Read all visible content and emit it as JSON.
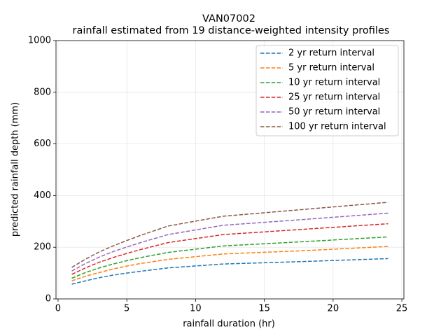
{
  "chart_data": {
    "type": "line",
    "title": "VAN07002",
    "subtitle": "rainfall estimated from 19 distance-weighted intensity profiles",
    "x_label": "rainfall duration (hr)",
    "y_label": "predicted rainfall depth (mm)",
    "x": [
      1,
      2,
      3,
      4,
      5,
      6,
      8,
      12,
      18,
      24
    ],
    "series": [
      {
        "name": "2 yr return interval",
        "color": "#1f77b4",
        "values": [
          57,
          70,
          82,
          92,
          100,
          107,
          120,
          135,
          145,
          156
        ]
      },
      {
        "name": "5 yr return interval",
        "color": "#ff7f0e",
        "values": [
          70,
          88,
          102,
          116,
          127,
          137,
          153,
          174,
          187,
          203
        ]
      },
      {
        "name": "10 yr return interval",
        "color": "#2ca02c",
        "values": [
          80,
          102,
          120,
          135,
          148,
          160,
          180,
          205,
          222,
          240
        ]
      },
      {
        "name": "25 yr return interval",
        "color": "#d62728",
        "values": [
          95,
          120,
          142,
          160,
          176,
          191,
          218,
          249,
          270,
          291
        ]
      },
      {
        "name": "50 yr return interval",
        "color": "#9467bd",
        "values": [
          108,
          137,
          162,
          183,
          201,
          218,
          249,
          285,
          308,
          332
        ]
      },
      {
        "name": "100 yr return interval",
        "color": "#8c564b",
        "values": [
          122,
          154,
          182,
          205,
          226,
          246,
          282,
          320,
          347,
          374
        ]
      }
    ],
    "xlim": [
      -0.15,
      25.15
    ],
    "ylim": [
      0,
      1000
    ],
    "xticks": [
      0,
      5,
      10,
      15,
      20,
      25
    ],
    "yticks": [
      0,
      200,
      400,
      600,
      800,
      1000
    ],
    "grid": true,
    "legend": "upper right",
    "line_style": "dashed"
  }
}
